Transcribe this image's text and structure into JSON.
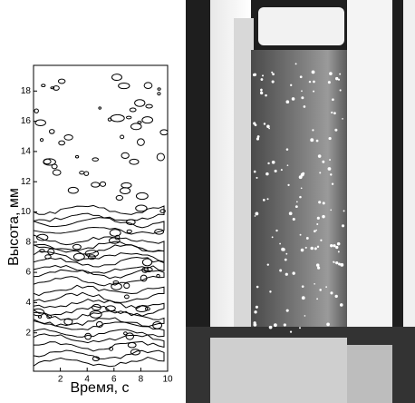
{
  "chart_data": {
    "type": "contour",
    "x_label": "Время, с",
    "y_label": "Высота, мм",
    "xlim": [
      0,
      10
    ],
    "ylim": [
      0,
      19.7
    ],
    "xticks": [
      2,
      4,
      6,
      8,
      10
    ],
    "yticks": [
      2,
      4,
      6,
      8,
      10,
      12,
      14,
      16,
      18
    ]
  }
}
